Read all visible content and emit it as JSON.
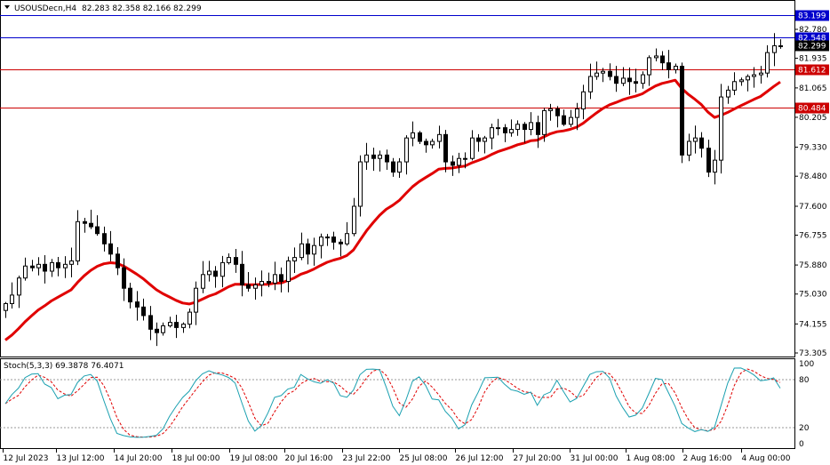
{
  "header": {
    "symbol": "USOUSDecn,H4",
    "ohlc": "82.283 82.358 82.166 82.299"
  },
  "indicator": {
    "label": "Stoch(5,3,3) 69.3878 76.4071",
    "levels": [
      "100",
      "80",
      "20",
      "0"
    ]
  },
  "colors": {
    "background": "#ffffff",
    "candle": "#000000",
    "ma": "#e00000",
    "blue_line": "#0000cc",
    "red_line": "#cc0000",
    "stoch_main": "#1aa0b0",
    "stoch_signal": "#e00000"
  },
  "chart_data": {
    "type": "candlestick",
    "timeframe": "H4",
    "y_ticks": [
      "82.780",
      "81.935",
      "81.065",
      "80.205",
      "79.330",
      "78.480",
      "77.600",
      "76.755",
      "75.880",
      "75.030",
      "74.155",
      "73.305"
    ],
    "ylim": [
      73.05,
      83.55
    ],
    "x_ticks": [
      "12 Jul 2023",
      "13 Jul 12:00",
      "14 Jul 20:00",
      "18 Jul 00:00",
      "19 Jul 08:00",
      "20 Jul 16:00",
      "23 Jul 22:00",
      "25 Jul 08:00",
      "26 Jul 12:00",
      "27 Jul 20:00",
      "31 Jul 00:00",
      "1 Aug 08:00",
      "2 Aug 16:00",
      "4 Aug 00:00"
    ],
    "horizontal_lines": [
      {
        "price": "83.199",
        "kind": "blue"
      },
      {
        "price": "82.548",
        "kind": "blue"
      },
      {
        "price": "81.612",
        "kind": "red"
      },
      {
        "price": "80.484",
        "kind": "red"
      }
    ],
    "current_price": "82.299",
    "closes": [
      74.75,
      75.0,
      75.5,
      75.85,
      75.8,
      75.9,
      75.7,
      75.95,
      75.8,
      75.9,
      76.0,
      77.15,
      77.1,
      77.0,
      76.8,
      76.5,
      76.2,
      75.8,
      75.2,
      74.8,
      74.65,
      74.4,
      74.0,
      73.9,
      74.1,
      74.2,
      74.05,
      74.15,
      74.5,
      75.2,
      75.6,
      75.7,
      75.55,
      75.95,
      76.1,
      75.9,
      75.3,
      75.2,
      75.3,
      75.4,
      75.35,
      75.6,
      75.4,
      76.0,
      76.1,
      76.5,
      76.2,
      76.45,
      76.7,
      76.7,
      76.55,
      76.5,
      76.8,
      77.6,
      78.9,
      79.1,
      79.0,
      79.1,
      78.9,
      78.6,
      78.9,
      79.6,
      79.75,
      79.5,
      79.4,
      79.5,
      79.7,
      78.9,
      78.8,
      79.0,
      79.0,
      79.6,
      79.5,
      79.6,
      79.9,
      79.9,
      79.75,
      79.85,
      80.0,
      79.85,
      80.05,
      79.7,
      80.4,
      80.45,
      80.25,
      80.0,
      80.2,
      80.45,
      80.95,
      81.4,
      81.5,
      81.55,
      81.4,
      81.2,
      81.35,
      81.25,
      81.2,
      81.45,
      81.95,
      82.0,
      81.8,
      81.6,
      81.7,
      79.1,
      79.5,
      79.6,
      79.3,
      78.6,
      78.95,
      80.8,
      81.0,
      81.25,
      81.3,
      81.4,
      81.45,
      81.5,
      82.1,
      82.3,
      82.3
    ],
    "ma_period_hint": "smoothed moving average",
    "stochastic": {
      "k": 69.3878,
      "d": 76.4071,
      "levels": [
        100,
        80,
        20,
        0
      ]
    }
  }
}
